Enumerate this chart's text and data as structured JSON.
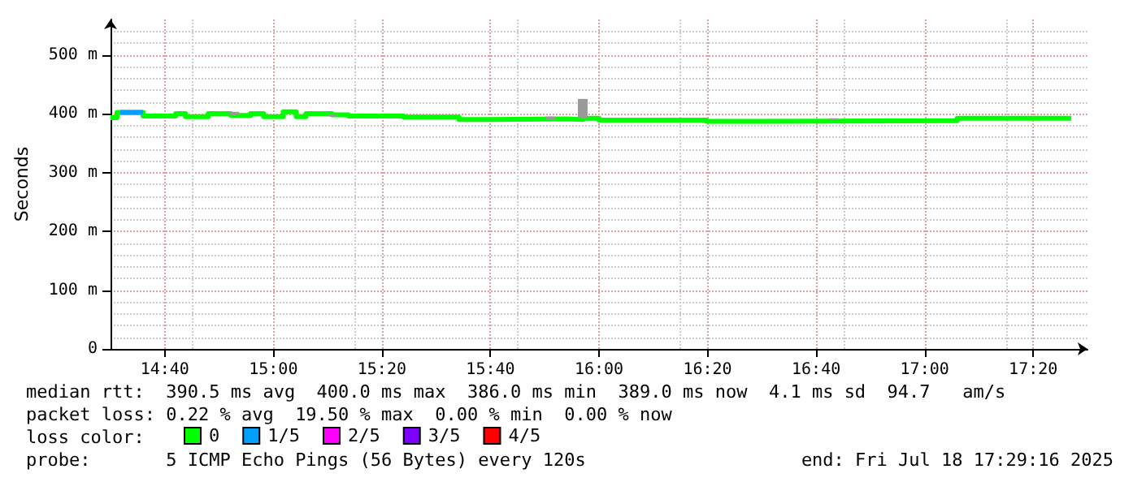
{
  "chart_data": {
    "type": "step",
    "ylabel": "Seconds",
    "xlim": [
      14.5,
      17.5
    ],
    "xticks": [
      {
        "value": 14.6667,
        "label": "14:40"
      },
      {
        "value": 15,
        "label": "15:00"
      },
      {
        "value": 15.3333,
        "label": "15:20"
      },
      {
        "value": 15.6667,
        "label": "15:40"
      },
      {
        "value": 16,
        "label": "16:00"
      },
      {
        "value": 16.3333,
        "label": "16:20"
      },
      {
        "value": 16.6667,
        "label": "16:40"
      },
      {
        "value": 17,
        "label": "17:00"
      },
      {
        "value": 17.3333,
        "label": "17:20"
      }
    ],
    "ylim": [
      0,
      560
    ],
    "yticks": [
      0,
      {
        "value": 100,
        "label": "100 m"
      },
      {
        "value": 200,
        "label": "200 m"
      },
      {
        "value": 300,
        "label": "300 m"
      },
      {
        "value": 400,
        "label": "400 m"
      },
      {
        "value": 500,
        "label": "500 m"
      }
    ],
    "grid": true,
    "legend": "bottom",
    "marker": "none",
    "series": [
      {
        "type": "bar",
        "color": "#999999",
        "x": [
          14.88,
          15.18,
          15.85,
          15.95,
          16.72
        ],
        "base": [
          397,
          395,
          390,
          392,
          389
        ],
        "values": [
          6,
          4,
          5,
          33,
          3
        ]
      },
      {
        "name": "0",
        "color": "#00ff00",
        "x": [
          14.5,
          14.52,
          14.6,
          14.7,
          14.73,
          14.8,
          14.87,
          14.93,
          14.97,
          15.03,
          15.07,
          15.1,
          15.18,
          15.23,
          15.4,
          15.57,
          15.67,
          15.9,
          15.95,
          16,
          16.33,
          16.5,
          17.1,
          17.45
        ],
        "values": [
          393,
          402,
          396,
          400,
          395,
          400,
          397,
          400,
          395,
          403,
          395,
          400,
          398,
          396,
          394,
          390,
          391,
          390,
          392,
          389,
          387,
          388,
          392,
          391
        ]
      },
      {
        "name": "1/5",
        "color": "#00a0ff",
        "x": [
          14.53,
          14.6
        ],
        "values": [
          402,
          402
        ]
      },
      {
        "name": "2/5",
        "color": "#ff00ff"
      },
      {
        "name": "3/5",
        "color": "#7e00ff"
      },
      {
        "name": "4/5",
        "color": "#ff0000"
      }
    ],
    "annotations": [
      "median rtt:  390.5 ms avg  400.0 ms max  386.0 ms min  389.0 ms now  4.1 ms sd  94.7   am/s",
      "packet loss: 0.22 % avg  19.50 % max  0.00 % min  0.00 % now",
      "loss color:",
      "probe:       5 ICMP Echo Pings (56 Bytes) every 120s",
      "end: Fri Jul 18 17:29:16 2025"
    ]
  }
}
